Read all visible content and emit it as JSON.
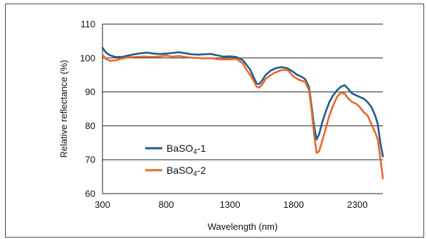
{
  "chart_data": {
    "type": "line",
    "title": "",
    "xlabel": "Wavelength (nm)",
    "ylabel": "Relative reflectance (%)",
    "xlim": [
      300,
      2500
    ],
    "ylim": [
      60,
      110
    ],
    "xticks": [
      300,
      800,
      1300,
      1800,
      2300
    ],
    "yticks": [
      60,
      70,
      80,
      90,
      100,
      110
    ],
    "grid": "horizontal",
    "legend_position": "lower-left",
    "series": [
      {
        "name": "BaSO4-1",
        "legend_label": {
          "main": "BaSO",
          "sub": "4",
          "rest": "-1"
        },
        "color": "#1f5b8e",
        "x": [
          300,
          330,
          360,
          400,
          450,
          500,
          550,
          600,
          650,
          700,
          750,
          800,
          850,
          900,
          950,
          1000,
          1050,
          1100,
          1150,
          1200,
          1250,
          1300,
          1350,
          1400,
          1430,
          1460,
          1490,
          1510,
          1530,
          1550,
          1580,
          1620,
          1660,
          1700,
          1750,
          1800,
          1830,
          1860,
          1890,
          1920,
          1940,
          1960,
          1980,
          2000,
          2020,
          2050,
          2080,
          2110,
          2140,
          2170,
          2200,
          2230,
          2260,
          2290,
          2320,
          2350,
          2380,
          2410,
          2440,
          2460,
          2480,
          2500
        ],
        "values": [
          103,
          101.5,
          100.8,
          100.3,
          100.3,
          100.7,
          101.1,
          101.4,
          101.6,
          101.3,
          101.2,
          101.3,
          101.5,
          101.7,
          101.4,
          101.1,
          101.0,
          101.1,
          101.2,
          100.8,
          100.4,
          100.5,
          100.3,
          99.4,
          98.0,
          96.5,
          94.0,
          92.5,
          92.3,
          93.2,
          95.0,
          96.3,
          97.0,
          97.3,
          97.0,
          95.8,
          95.0,
          94.5,
          93.8,
          91.5,
          86.0,
          80.0,
          76.0,
          77.5,
          80.5,
          84.0,
          87.0,
          89.0,
          90.5,
          91.5,
          92.0,
          90.8,
          89.5,
          89.0,
          88.5,
          88.0,
          87.0,
          85.5,
          83.0,
          80.5,
          75.0,
          71.0
        ]
      },
      {
        "name": "BaSO4-2",
        "legend_label": {
          "main": "BaSO",
          "sub": "4",
          "rest": "-2"
        },
        "color": "#e8672b",
        "x": [
          300,
          330,
          360,
          400,
          450,
          500,
          550,
          600,
          650,
          700,
          750,
          800,
          850,
          900,
          950,
          1000,
          1050,
          1100,
          1150,
          1200,
          1250,
          1300,
          1350,
          1400,
          1430,
          1460,
          1490,
          1510,
          1530,
          1550,
          1580,
          1620,
          1660,
          1700,
          1750,
          1800,
          1830,
          1860,
          1890,
          1920,
          1940,
          1960,
          1980,
          2000,
          2020,
          2050,
          2080,
          2110,
          2140,
          2170,
          2200,
          2230,
          2260,
          2290,
          2320,
          2350,
          2380,
          2410,
          2440,
          2460,
          2480,
          2500
        ],
        "values": [
          101,
          99.6,
          99.2,
          99.3,
          99.8,
          100.2,
          100.3,
          100.4,
          100.4,
          100.3,
          100.5,
          100.7,
          100.4,
          100.6,
          100.3,
          100.1,
          100.0,
          99.9,
          100.0,
          99.7,
          99.6,
          99.6,
          99.7,
          98.5,
          96.5,
          95.0,
          93.0,
          91.5,
          91.3,
          92.0,
          93.8,
          95.0,
          95.8,
          96.4,
          96.5,
          94.5,
          93.8,
          93.3,
          93.0,
          90.5,
          85.0,
          77.5,
          72.0,
          72.5,
          75.0,
          79.0,
          83.0,
          86.0,
          88.5,
          89.8,
          89.5,
          88.0,
          87.0,
          86.5,
          85.5,
          84.0,
          83.0,
          80.5,
          78.0,
          76.0,
          70.5,
          64.5
        ]
      }
    ]
  }
}
